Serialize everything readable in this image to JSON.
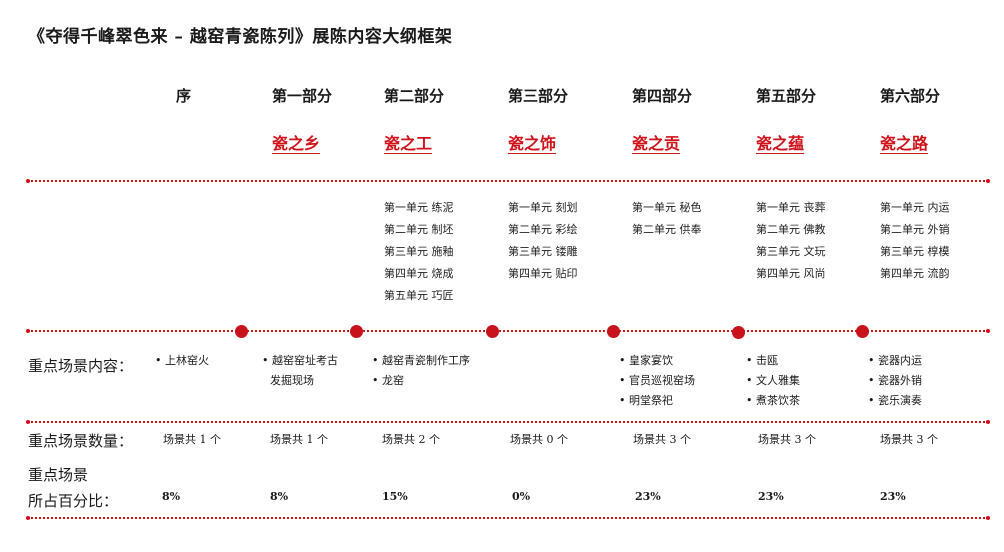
{
  "title": "《夺得千峰翠色来 – 越窑青瓷陈列》展陈内容大纲框架",
  "columns": [
    {
      "part": "序",
      "theme": "",
      "units": [],
      "scenes": [
        "• 上林窑火"
      ],
      "count": "场景共 1 个",
      "pct": "8%"
    },
    {
      "part": "第一部分",
      "theme": "瓷之乡",
      "units": [],
      "scenes": [
        "• 越窑窑址考古",
        "  发掘现场"
      ],
      "count": "场景共 1 个",
      "pct": "8%"
    },
    {
      "part": "第二部分",
      "theme": "瓷之工",
      "units": [
        "第一单元  练泥",
        "第二单元  制坯",
        "第三单元  施釉",
        "第四单元  烧成",
        "第五单元  巧匠"
      ],
      "scenes": [
        "• 越窑青瓷制作工序",
        "• 龙窑"
      ],
      "count": "场景共 2 个",
      "pct": "15%"
    },
    {
      "part": "第三部分",
      "theme": "瓷之饰",
      "units": [
        "第一单元  刻划",
        "第二单元  彩绘",
        "第三单元  镂雕",
        "第四单元  贴印"
      ],
      "scenes": [],
      "count": "场景共 0 个",
      "pct": "0%"
    },
    {
      "part": "第四部分",
      "theme": "瓷之贡",
      "units": [
        "第一单元  秘色",
        "第二单元  供奉"
      ],
      "scenes": [
        "• 皇家宴饮",
        "• 官员巡视窑场",
        "• 明堂祭祀"
      ],
      "count": "场景共 3 个",
      "pct": "23%"
    },
    {
      "part": "第五部分",
      "theme": "瓷之蕴",
      "units": [
        "第一单元  丧葬",
        "第二单元  佛教",
        "第三单元  文玩",
        "第四单元  风尚"
      ],
      "scenes": [
        "• 击瓯",
        "• 文人雅集",
        "• 煮茶饮茶"
      ],
      "count": "场景共 3 个",
      "pct": "23%"
    },
    {
      "part": "第六部分",
      "theme": "瓷之路",
      "units": [
        "第一单元  内运",
        "第二单元  外销",
        "第三单元  椁模",
        "第四单元  流韵"
      ],
      "scenes": [
        "• 瓷器内运",
        "• 瓷器外销",
        "• 瓷乐演奏"
      ],
      "count": "场景共 3 个",
      "pct": "23%"
    }
  ],
  "labels": {
    "scenes": "重点场景内容：",
    "count": "重点场景数量：",
    "pct_line1": "重点场景",
    "pct_line2": "所占百分比："
  },
  "colors": {
    "accent": "#d0121b",
    "text": "#1a1a1a"
  }
}
